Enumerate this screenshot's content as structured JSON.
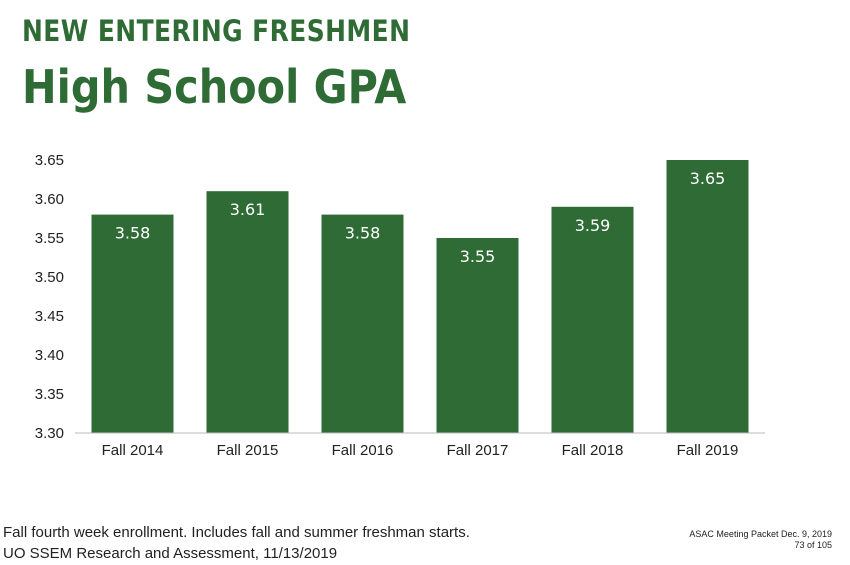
{
  "header": {
    "overline": "NEW ENTERING FRESHMEN",
    "title": "High School GPA"
  },
  "chart_data": {
    "type": "bar",
    "categories": [
      "Fall 2014",
      "Fall 2015",
      "Fall 2016",
      "Fall 2017",
      "Fall 2018",
      "Fall 2019"
    ],
    "values": [
      3.58,
      3.61,
      3.58,
      3.55,
      3.59,
      3.65
    ],
    "data_labels": [
      "3.58",
      "3.61",
      "3.58",
      "3.55",
      "3.59",
      "3.65"
    ],
    "ylim": [
      3.3,
      3.65
    ],
    "yticks": [
      "3.30",
      "3.35",
      "3.40",
      "3.45",
      "3.50",
      "3.55",
      "3.60",
      "3.65"
    ],
    "bar_color": "#2e6b35",
    "label_color": "#ffffff",
    "grid": false,
    "legend": "none"
  },
  "footer": {
    "note_line1": "Fall fourth week enrollment. Includes fall and summer freshman starts.",
    "note_line2": "UO SSEM Research and Assessment, 11/13/2019",
    "meeting": "ASAC Meeting Packet Dec. 9, 2019",
    "page": "73 of 105"
  }
}
